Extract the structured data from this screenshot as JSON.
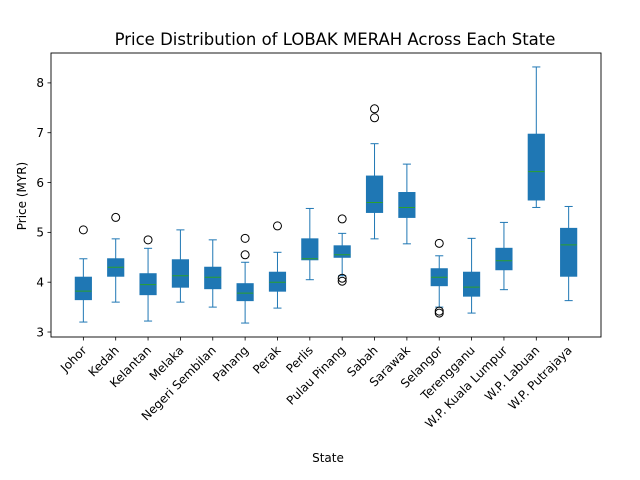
{
  "chart_data": {
    "type": "box",
    "title": "Price Distribution of LOBAK MERAH Across Each State",
    "xlabel": "State",
    "ylabel": "Price (MYR)",
    "ylim": [
      2.9,
      8.6
    ],
    "yticks": [
      3,
      4,
      5,
      6,
      7,
      8
    ],
    "grid": false,
    "colors": {
      "box": "#1f77b4",
      "median": "#2ca02c",
      "whisker": "#1f77b4",
      "flier": "#000000"
    },
    "categories": [
      "Johor",
      "Kedah",
      "Kelantan",
      "Melaka",
      "Negeri Sembilan",
      "Pahang",
      "Perak",
      "Perlis",
      "Pulau Pinang",
      "Sabah",
      "Sarawak",
      "Selangor",
      "Terengganu",
      "W.P. Kuala Lumpur",
      "W.P. Labuan",
      "W.P. Putrajaya"
    ],
    "boxes": [
      {
        "whislo": 3.2,
        "q1": 3.65,
        "med": 3.82,
        "q3": 4.1,
        "whishi": 4.47,
        "fliers": [
          5.05
        ]
      },
      {
        "whislo": 3.6,
        "q1": 4.12,
        "med": 4.3,
        "q3": 4.47,
        "whishi": 4.87,
        "fliers": [
          5.3
        ]
      },
      {
        "whislo": 3.22,
        "q1": 3.75,
        "med": 3.95,
        "q3": 4.17,
        "whishi": 4.68,
        "fliers": [
          4.85
        ]
      },
      {
        "whislo": 3.6,
        "q1": 3.9,
        "med": 4.13,
        "q3": 4.45,
        "whishi": 5.05,
        "fliers": []
      },
      {
        "whislo": 3.5,
        "q1": 3.87,
        "med": 4.1,
        "q3": 4.3,
        "whishi": 4.85,
        "fliers": []
      },
      {
        "whislo": 3.18,
        "q1": 3.63,
        "med": 3.78,
        "q3": 3.97,
        "whishi": 4.4,
        "fliers": [
          4.88,
          4.55
        ]
      },
      {
        "whislo": 3.48,
        "q1": 3.82,
        "med": 4.0,
        "q3": 4.2,
        "whishi": 4.6,
        "fliers": [
          5.13
        ]
      },
      {
        "whislo": 4.05,
        "q1": 4.45,
        "med": 4.47,
        "q3": 4.87,
        "whishi": 5.48,
        "fliers": []
      },
      {
        "whislo": 4.13,
        "q1": 4.5,
        "med": 4.55,
        "q3": 4.73,
        "whishi": 4.98,
        "fliers": [
          5.27,
          4.08,
          4.02
        ]
      },
      {
        "whislo": 4.87,
        "q1": 5.4,
        "med": 5.6,
        "q3": 6.13,
        "whishi": 6.78,
        "fliers": [
          7.48,
          7.3
        ]
      },
      {
        "whislo": 4.77,
        "q1": 5.3,
        "med": 5.5,
        "q3": 5.8,
        "whishi": 6.37,
        "fliers": []
      },
      {
        "whislo": 3.5,
        "q1": 3.93,
        "med": 4.1,
        "q3": 4.27,
        "whishi": 4.53,
        "fliers": [
          4.78,
          3.42,
          3.38
        ]
      },
      {
        "whislo": 3.38,
        "q1": 3.72,
        "med": 3.9,
        "q3": 4.2,
        "whishi": 4.88,
        "fliers": []
      },
      {
        "whislo": 3.85,
        "q1": 4.25,
        "med": 4.43,
        "q3": 4.68,
        "whishi": 5.2,
        "fliers": []
      },
      {
        "whislo": 5.5,
        "q1": 5.65,
        "med": 6.22,
        "q3": 6.97,
        "whishi": 8.32,
        "fliers": []
      },
      {
        "whislo": 3.63,
        "q1": 4.12,
        "med": 4.75,
        "q3": 5.08,
        "whishi": 5.52,
        "fliers": []
      }
    ]
  }
}
